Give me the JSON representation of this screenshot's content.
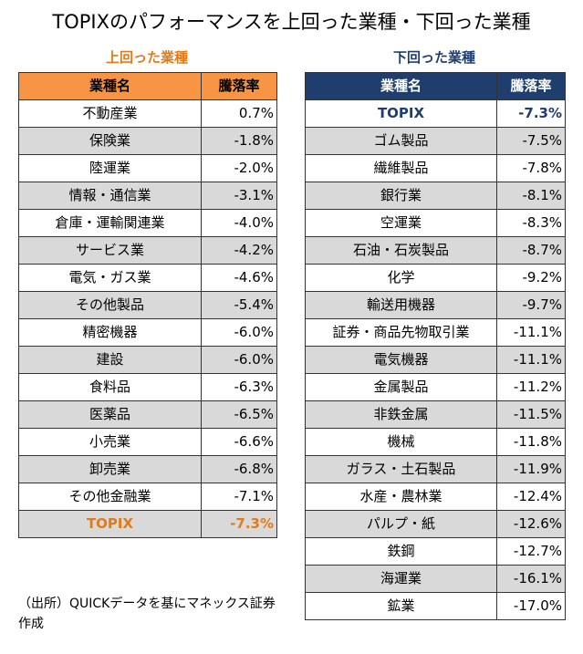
{
  "title": "TOPIXのパフォーマンスを上回った業種・下回った業種",
  "left_table": {
    "subtitle": "上回った業種",
    "header": {
      "name": "業種名",
      "value": "騰落率"
    },
    "rows": [
      {
        "name": "不動産業",
        "value": "0.7%"
      },
      {
        "name": "保険業",
        "value": "-1.8%"
      },
      {
        "name": "陸運業",
        "value": "-2.0%"
      },
      {
        "name": "情報・通信業",
        "value": "-3.1%"
      },
      {
        "name": "倉庫・運輸関連業",
        "value": "-4.0%"
      },
      {
        "name": "サービス業",
        "value": "-4.2%"
      },
      {
        "name": "電気・ガス業",
        "value": "-4.6%"
      },
      {
        "name": "その他製品",
        "value": "-5.4%"
      },
      {
        "name": "精密機器",
        "value": "-6.0%"
      },
      {
        "name": "建設",
        "value": "-6.0%"
      },
      {
        "name": "食料品",
        "value": "-6.3%"
      },
      {
        "name": "医薬品",
        "value": "-6.5%"
      },
      {
        "name": "小売業",
        "value": "-6.6%"
      },
      {
        "name": "卸売業",
        "value": "-6.8%"
      },
      {
        "name": "その他金融業",
        "value": "-7.1%"
      },
      {
        "name": "TOPIX",
        "value": "-7.3%"
      }
    ]
  },
  "right_table": {
    "subtitle": "下回った業種",
    "header": {
      "name": "業種名",
      "value": "騰落率"
    },
    "rows": [
      {
        "name": "TOPIX",
        "value": "-7.3%"
      },
      {
        "name": "ゴム製品",
        "value": "-7.5%"
      },
      {
        "name": "繊維製品",
        "value": "-7.8%"
      },
      {
        "name": "銀行業",
        "value": "-8.1%"
      },
      {
        "name": "空運業",
        "value": "-8.3%"
      },
      {
        "name": "石油・石炭製品",
        "value": "-8.7%"
      },
      {
        "name": "化学",
        "value": "-9.2%"
      },
      {
        "name": "輸送用機器",
        "value": "-9.7%"
      },
      {
        "name": "証券・商品先物取引業",
        "value": "-11.1%"
      },
      {
        "name": "電気機器",
        "value": "-11.1%"
      },
      {
        "name": "金属製品",
        "value": "-11.2%"
      },
      {
        "name": "非鉄金属",
        "value": "-11.5%"
      },
      {
        "name": "機械",
        "value": "-11.8%"
      },
      {
        "name": "ガラス・土石製品",
        "value": "-11.9%"
      },
      {
        "name": "水産・農林業",
        "value": "-12.4%"
      },
      {
        "name": "パルプ・紙",
        "value": "-12.6%"
      },
      {
        "name": "鉄鋼",
        "value": "-12.7%"
      },
      {
        "name": "海運業",
        "value": "-16.1%"
      },
      {
        "name": "鉱業",
        "value": "-17.0%"
      }
    ]
  },
  "source_note": "（出所）QUICKデータを基にマネックス証券作成",
  "colors": {
    "orange": "#e07b1a",
    "header_orange": "#f79544",
    "navy": "#1f3e6e",
    "shade": "#d9d9d9"
  }
}
